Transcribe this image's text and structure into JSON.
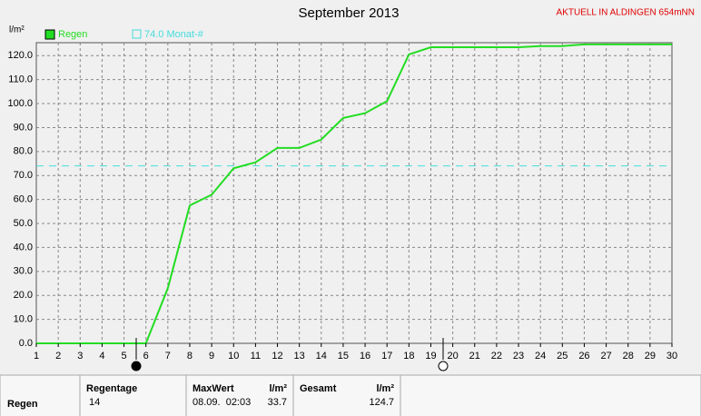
{
  "chart_data": {
    "type": "line",
    "title": "September 2013",
    "subtitle": "AKTUELL IN ALDINGEN 654mNN",
    "y_label": "l/m²",
    "x": [
      1,
      2,
      3,
      4,
      5,
      6,
      7,
      8,
      9,
      10,
      11,
      12,
      13,
      14,
      15,
      16,
      17,
      18,
      19,
      20,
      21,
      22,
      23,
      24,
      25,
      26,
      27,
      28,
      29,
      30
    ],
    "series": [
      {
        "name": "Regen",
        "color": "#22dd22",
        "values": [
          0,
          0,
          0,
          0,
          0,
          0,
          23,
          57.5,
          62,
          73,
          75.5,
          81.5,
          81.5,
          85,
          94,
          96,
          101,
          120.5,
          123.5,
          123.5,
          123.5,
          123.5,
          123.5,
          124,
          124,
          124.7,
          124.7,
          124.7,
          124.7,
          124.7
        ]
      }
    ],
    "reference_line": {
      "value": 74,
      "label": "74.0 Monat-#",
      "color": "#44dddd"
    },
    "xlim": [
      1,
      30
    ],
    "xticks": [
      1,
      2,
      3,
      4,
      5,
      6,
      7,
      8,
      9,
      10,
      11,
      12,
      13,
      14,
      15,
      16,
      17,
      18,
      19,
      20,
      21,
      22,
      23,
      24,
      25,
      26,
      27,
      28,
      29,
      30
    ],
    "ylim": [
      0,
      125.4
    ],
    "yticks": [
      {
        "value": 0,
        "label": "0.0"
      },
      {
        "value": 10,
        "label": "10.0"
      },
      {
        "value": 20,
        "label": "20.0"
      },
      {
        "value": 30,
        "label": "30.0"
      },
      {
        "value": 40,
        "label": "40.0"
      },
      {
        "value": 50,
        "label": "50.0"
      },
      {
        "value": 60,
        "label": "60.0"
      },
      {
        "value": 70,
        "label": "70.0"
      },
      {
        "value": 80,
        "label": "80.0"
      },
      {
        "value": 90,
        "label": "90.0"
      },
      {
        "value": 100,
        "label": "100.0"
      },
      {
        "value": 110,
        "label": "110.0"
      },
      {
        "value": 120,
        "label": "120.0"
      }
    ],
    "grid": true
  },
  "summary": {
    "row_label": "Regen",
    "regentage": {
      "title": "Regentage",
      "value": "14"
    },
    "maxwert": {
      "title": "MaxWert",
      "unit": "l/m²",
      "date": "08.09.  02:03",
      "value": "33.7"
    },
    "gesamt": {
      "title": "Gesamt",
      "unit": "l/m²",
      "value": "124.7"
    }
  }
}
